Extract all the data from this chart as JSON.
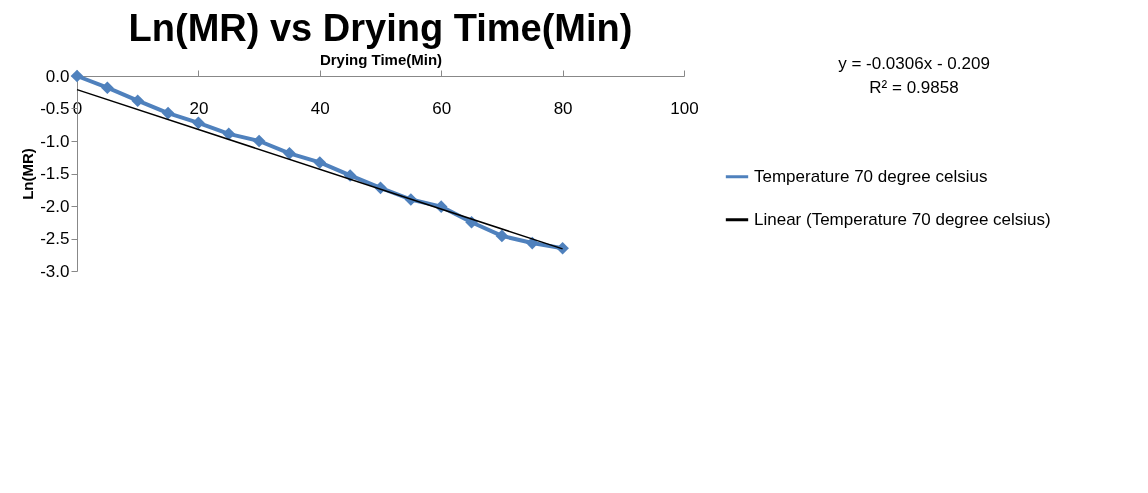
{
  "chart_data": {
    "type": "line",
    "title": "Ln(MR) vs Drying Time(Min)",
    "xlabel": "Drying Time(Min)",
    "ylabel": "Ln(MR)",
    "x": [
      0,
      5,
      10,
      15,
      20,
      25,
      30,
      35,
      40,
      45,
      50,
      55,
      60,
      65,
      70,
      75,
      80
    ],
    "series": [
      {
        "name": "Temperature 70 degree celsius",
        "color": "#4f81bd",
        "values": [
          0,
          -0.18,
          -0.38,
          -0.57,
          -0.72,
          -0.89,
          -1.0,
          -1.19,
          -1.33,
          -1.53,
          -1.72,
          -1.9,
          -2.01,
          -2.25,
          -2.46,
          -2.57,
          -2.65
        ],
        "marker": "diamond"
      },
      {
        "name": "Linear (Temperature 70 degree celsius)",
        "type": "line",
        "color": "#000000",
        "x": [
          0,
          80
        ],
        "values": [
          -0.21,
          -2.66
        ],
        "marker": "none"
      }
    ],
    "annotations": [
      "y = -0.0306x - 0.209",
      "R² = 0.9858"
    ],
    "xlim": [
      0,
      100
    ],
    "xticks": [
      0,
      20,
      40,
      60,
      80,
      100
    ],
    "ylim": [
      -3,
      0
    ],
    "yticks": [
      {
        "value": 0,
        "label": "0.0"
      },
      {
        "value": -0.5,
        "label": "-0.5"
      },
      {
        "value": -1,
        "label": "-1.0"
      },
      {
        "value": -1.5,
        "label": "-1.5"
      },
      {
        "value": -2,
        "label": "-2.0"
      },
      {
        "value": -2.5,
        "label": "-2.5"
      },
      {
        "value": -3,
        "label": "-3.0"
      }
    ],
    "grid": false,
    "legend": "right"
  }
}
